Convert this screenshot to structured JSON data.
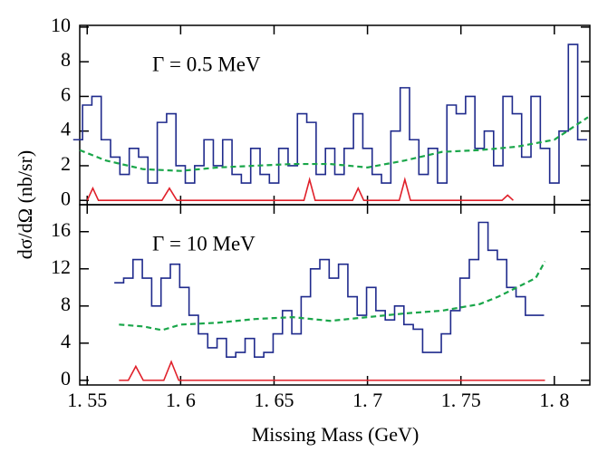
{
  "chart_data": [
    {
      "type": "line",
      "annotation": "Γ = 0.5 MeV",
      "ylabel": "dσ/dΩ (nb/sr)",
      "xlim": [
        1.546,
        1.819
      ],
      "ylim": [
        -0.25,
        10.1
      ],
      "yticks": [
        0,
        2,
        4,
        6,
        8,
        10
      ],
      "series": [
        {
          "color": "#1f2a8c",
          "drawstyle": "steps",
          "dashed": false,
          "x": [
            1.545,
            1.55,
            1.555,
            1.56,
            1.565,
            1.57,
            1.575,
            1.58,
            1.585,
            1.59,
            1.595,
            1.6,
            1.605,
            1.61,
            1.615,
            1.62,
            1.625,
            1.63,
            1.635,
            1.64,
            1.645,
            1.65,
            1.655,
            1.66,
            1.665,
            1.67,
            1.675,
            1.68,
            1.685,
            1.69,
            1.695,
            1.7,
            1.705,
            1.71,
            1.715,
            1.72,
            1.725,
            1.73,
            1.735,
            1.74,
            1.745,
            1.75,
            1.755,
            1.76,
            1.765,
            1.77,
            1.775,
            1.78,
            1.785,
            1.79,
            1.795,
            1.8,
            1.805,
            1.81,
            1.815
          ],
          "values": [
            3.5,
            5.5,
            6,
            3.5,
            2.5,
            1.5,
            3,
            2.5,
            1,
            4.5,
            5,
            2,
            1,
            2,
            3.5,
            2,
            3.5,
            1.5,
            1,
            3,
            1.5,
            1,
            3,
            2,
            5,
            4.5,
            1.5,
            3,
            1.5,
            3,
            5,
            3,
            1.5,
            1,
            4,
            6.5,
            3.5,
            1.5,
            3,
            1,
            5.5,
            5,
            6,
            3,
            4,
            2,
            6,
            5,
            2.5,
            6,
            3,
            1,
            4,
            9,
            3.5
          ]
        },
        {
          "color": "#1aa64a",
          "drawstyle": "line",
          "dashed": true,
          "x": [
            1.546,
            1.56,
            1.58,
            1.6,
            1.62,
            1.64,
            1.66,
            1.68,
            1.7,
            1.72,
            1.74,
            1.76,
            1.78,
            1.8,
            1.818
          ],
          "values": [
            2.9,
            2.3,
            1.8,
            1.7,
            1.9,
            2.0,
            2.1,
            2.1,
            1.9,
            2.3,
            2.8,
            2.9,
            3.1,
            3.5,
            4.8
          ]
        },
        {
          "color": "#e0202a",
          "drawstyle": "line",
          "dashed": false,
          "x": [
            1.55,
            1.553,
            1.556,
            1.59,
            1.594,
            1.598,
            1.666,
            1.669,
            1.672,
            1.692,
            1.695,
            1.698,
            1.717,
            1.72,
            1.723,
            1.772,
            1.775,
            1.778
          ],
          "values": [
            0,
            0.7,
            0,
            0,
            0.7,
            0,
            0,
            1.2,
            0,
            0,
            0.7,
            0,
            0,
            1.2,
            0,
            0,
            0.3,
            0
          ]
        }
      ]
    },
    {
      "type": "line",
      "annotation": "Γ = 10 MeV",
      "xlabel": "Missing Mass (GeV)",
      "xlim": [
        1.546,
        1.819
      ],
      "ylim": [
        -0.5,
        18.9
      ],
      "yticks": [
        0,
        4,
        8,
        12,
        16
      ],
      "xticks": [
        {
          "value": 1.55,
          "label": "1. 55"
        },
        {
          "value": 1.6,
          "label": "1. 6"
        },
        {
          "value": 1.65,
          "label": "1. 65"
        },
        {
          "value": 1.7,
          "label": "1. 7"
        },
        {
          "value": 1.75,
          "label": "1. 75"
        },
        {
          "value": 1.8,
          "label": "1. 8"
        }
      ],
      "series": [
        {
          "color": "#1f2a8c",
          "drawstyle": "steps",
          "dashed": false,
          "x": [
            1.567,
            1.572,
            1.577,
            1.582,
            1.587,
            1.592,
            1.597,
            1.602,
            1.607,
            1.612,
            1.617,
            1.622,
            1.627,
            1.632,
            1.637,
            1.642,
            1.647,
            1.652,
            1.657,
            1.662,
            1.667,
            1.672,
            1.677,
            1.682,
            1.687,
            1.692,
            1.697,
            1.702,
            1.707,
            1.712,
            1.717,
            1.722,
            1.727,
            1.732,
            1.737,
            1.742,
            1.747,
            1.752,
            1.757,
            1.762,
            1.767,
            1.772,
            1.777,
            1.782,
            1.787,
            1.792
          ],
          "values": [
            10.5,
            11,
            13,
            11,
            8,
            11,
            12.5,
            10,
            7,
            5,
            3.5,
            4.5,
            2.5,
            3,
            4.5,
            2.5,
            3,
            5,
            7.5,
            5,
            9,
            12,
            13,
            11,
            12.5,
            9,
            7,
            10,
            7.5,
            6.5,
            8,
            6,
            5.5,
            3,
            3,
            5,
            7.5,
            11,
            13,
            17,
            14,
            13,
            10,
            9,
            7,
            7
          ]
        },
        {
          "color": "#1aa64a",
          "drawstyle": "line",
          "dashed": true,
          "x": [
            1.567,
            1.58,
            1.59,
            1.6,
            1.62,
            1.64,
            1.66,
            1.68,
            1.7,
            1.72,
            1.74,
            1.76,
            1.77,
            1.78,
            1.79,
            1.795
          ],
          "values": [
            6,
            5.8,
            5.4,
            6,
            6.2,
            6.6,
            6.8,
            6.4,
            6.8,
            7.2,
            7.5,
            8.2,
            9,
            10,
            11,
            12.8
          ]
        },
        {
          "color": "#e0202a",
          "drawstyle": "line",
          "dashed": false,
          "x": [
            1.567,
            1.572,
            1.576,
            1.58,
            1.591,
            1.595,
            1.599,
            1.795
          ],
          "values": [
            0,
            0,
            1.5,
            0,
            0,
            2,
            0,
            0
          ]
        }
      ]
    }
  ]
}
